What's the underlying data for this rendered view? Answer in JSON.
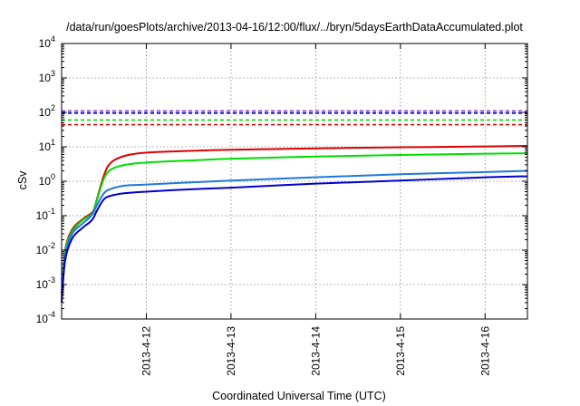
{
  "chart_data": {
    "type": "line",
    "title": "/data/run/goesPlots/archive/2013-04-16/12:00/flux/../bryn/5daysEarthDataAccumulated.plot",
    "xlabel": "Coordinated Universal Time (UTC)",
    "ylabel": "cSv",
    "x_scale": "date",
    "y_scale": "log",
    "xlim": [
      "2013-04-11 00:00",
      "2013-04-16 12:00"
    ],
    "ylim": [
      0.0001,
      10000
    ],
    "grid": true,
    "x_ticks": [
      "2013-4-12",
      "2013-4-13",
      "2013-4-14",
      "2013-4-15",
      "2013-4-16"
    ],
    "y_ticks": [
      {
        "value": 0.0001,
        "base": "10",
        "exp": "-4"
      },
      {
        "value": 0.001,
        "base": "10",
        "exp": "-3"
      },
      {
        "value": 0.01,
        "base": "10",
        "exp": "-2"
      },
      {
        "value": 0.1,
        "base": "10",
        "exp": "-1"
      },
      {
        "value": 1,
        "base": "10",
        "exp": "0"
      },
      {
        "value": 10,
        "base": "10",
        "exp": "1"
      },
      {
        "value": 100,
        "base": "10",
        "exp": "2"
      },
      {
        "value": 1000,
        "base": "10",
        "exp": "3"
      },
      {
        "value": 10000,
        "base": "10",
        "exp": "4"
      }
    ],
    "thresholds": [
      {
        "value": 110,
        "color": "#8a2be2"
      },
      {
        "value": 95,
        "color": "#0000cc"
      },
      {
        "value": 60,
        "color": "#00dd00"
      },
      {
        "value": 44,
        "color": "#dd0000"
      }
    ],
    "series": [
      {
        "color": "#dd0000",
        "points": [
          [
            "2013-04-11 00:00",
            0.0005
          ],
          [
            "2013-04-11 01:00",
            0.01
          ],
          [
            "2013-04-11 03:00",
            0.04
          ],
          [
            "2013-04-11 06:00",
            0.08
          ],
          [
            "2013-04-11 08:00",
            0.11
          ],
          [
            "2013-04-11 09:00",
            0.14
          ],
          [
            "2013-04-11 10:00",
            0.3
          ],
          [
            "2013-04-11 12:00",
            1.5
          ],
          [
            "2013-04-11 14:00",
            3.5
          ],
          [
            "2013-04-11 18:00",
            5.5
          ],
          [
            "2013-04-12 00:00",
            6.8
          ],
          [
            "2013-04-12 12:00",
            7.6
          ],
          [
            "2013-04-13 00:00",
            8.2
          ],
          [
            "2013-04-14 00:00",
            9.0
          ],
          [
            "2013-04-15 00:00",
            9.7
          ],
          [
            "2013-04-16 00:00",
            10.2
          ],
          [
            "2013-04-16 12:00",
            10.6
          ]
        ]
      },
      {
        "color": "#00dd00",
        "points": [
          [
            "2013-04-11 00:00",
            0.0005
          ],
          [
            "2013-04-11 01:00",
            0.009
          ],
          [
            "2013-04-11 03:00",
            0.035
          ],
          [
            "2013-04-11 06:00",
            0.075
          ],
          [
            "2013-04-11 08:00",
            0.1
          ],
          [
            "2013-04-11 09:00",
            0.13
          ],
          [
            "2013-04-11 10:00",
            0.28
          ],
          [
            "2013-04-11 12:00",
            1.2
          ],
          [
            "2013-04-11 14:00",
            2.2
          ],
          [
            "2013-04-11 18:00",
            3.0
          ],
          [
            "2013-04-12 00:00",
            3.5
          ],
          [
            "2013-04-12 12:00",
            4.0
          ],
          [
            "2013-04-13 00:00",
            4.5
          ],
          [
            "2013-04-14 00:00",
            5.2
          ],
          [
            "2013-04-15 00:00",
            5.8
          ],
          [
            "2013-04-16 00:00",
            6.3
          ],
          [
            "2013-04-16 12:00",
            6.5
          ]
        ]
      },
      {
        "color": "#1e78dc",
        "points": [
          [
            "2013-04-11 00:00",
            0.0004
          ],
          [
            "2013-04-11 01:00",
            0.007
          ],
          [
            "2013-04-11 03:00",
            0.03
          ],
          [
            "2013-04-11 06:00",
            0.06
          ],
          [
            "2013-04-11 08:00",
            0.09
          ],
          [
            "2013-04-11 09:00",
            0.12
          ],
          [
            "2013-04-11 10:00",
            0.2
          ],
          [
            "2013-04-11 12:00",
            0.45
          ],
          [
            "2013-04-11 14:00",
            0.6
          ],
          [
            "2013-04-11 18:00",
            0.75
          ],
          [
            "2013-04-12 00:00",
            0.8
          ],
          [
            "2013-04-12 12:00",
            0.92
          ],
          [
            "2013-04-13 00:00",
            1.05
          ],
          [
            "2013-04-14 00:00",
            1.3
          ],
          [
            "2013-04-15 00:00",
            1.6
          ],
          [
            "2013-04-16 00:00",
            1.85
          ],
          [
            "2013-04-16 12:00",
            2.0
          ]
        ]
      },
      {
        "color": "#0000cc",
        "points": [
          [
            "2013-04-11 00:00",
            0.0003
          ],
          [
            "2013-04-11 01:00",
            0.005
          ],
          [
            "2013-04-11 03:00",
            0.022
          ],
          [
            "2013-04-11 06:00",
            0.045
          ],
          [
            "2013-04-11 08:00",
            0.065
          ],
          [
            "2013-04-11 09:00",
            0.085
          ],
          [
            "2013-04-11 10:00",
            0.14
          ],
          [
            "2013-04-11 12:00",
            0.3
          ],
          [
            "2013-04-11 14:00",
            0.38
          ],
          [
            "2013-04-11 18:00",
            0.45
          ],
          [
            "2013-04-12 00:00",
            0.5
          ],
          [
            "2013-04-12 12:00",
            0.58
          ],
          [
            "2013-04-13 00:00",
            0.65
          ],
          [
            "2013-04-14 00:00",
            0.85
          ],
          [
            "2013-04-15 00:00",
            1.05
          ],
          [
            "2013-04-16 00:00",
            1.3
          ],
          [
            "2013-04-16 12:00",
            1.4
          ]
        ]
      }
    ]
  }
}
